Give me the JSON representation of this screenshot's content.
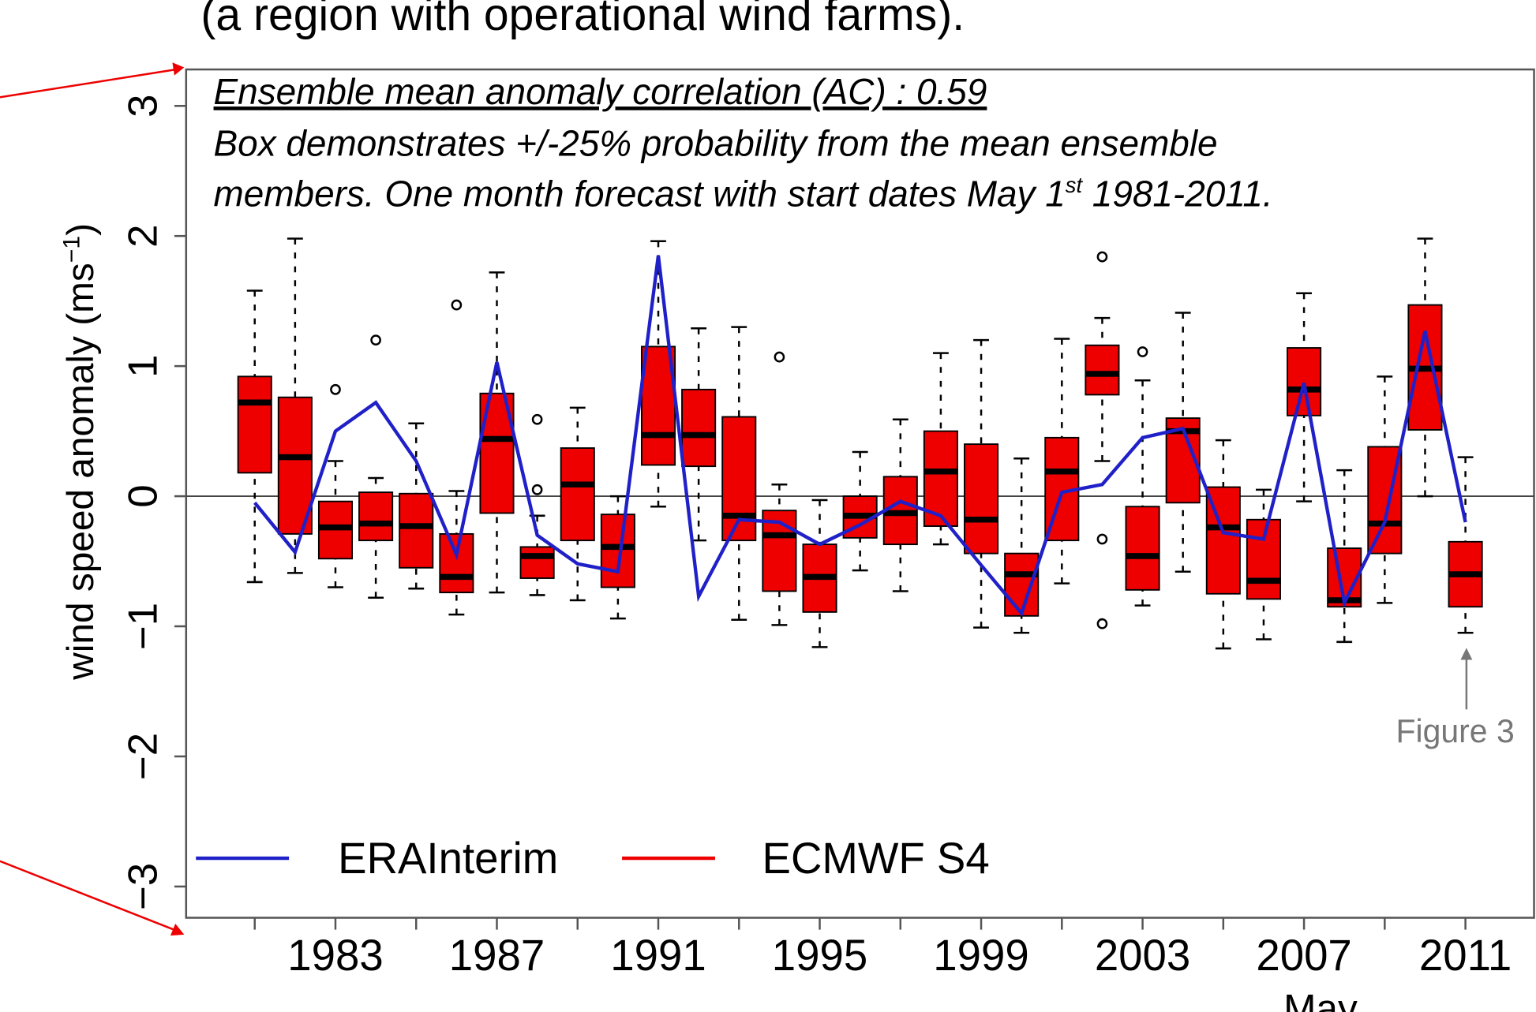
{
  "header_text": "(a region with operational wind farms).",
  "chart_data": {
    "type": "box",
    "annotations": [
      "Ensemble mean anomaly correlation (AC) : 0.59",
      "Box demonstrates +/-25% probability from the mean ensemble",
      "members. One month forecast with start dates May 1",
      "st",
      " 1981-2011.",
      "Figure 3"
    ],
    "xlabel": "May",
    "ylabel": [
      "wind speed anomaly  (ms",
      "−1",
      ")"
    ],
    "x": [
      1981,
      1982,
      1983,
      1984,
      1985,
      1986,
      1987,
      1988,
      1989,
      1990,
      1991,
      1992,
      1993,
      1994,
      1995,
      1996,
      1997,
      1998,
      1999,
      2000,
      2001,
      2002,
      2003,
      2004,
      2005,
      2006,
      2007,
      2008,
      2009,
      2010,
      2011
    ],
    "xlim": [
      1979.3,
      2012.7
    ],
    "xticks": [
      1983,
      1987,
      1991,
      1995,
      1999,
      2003,
      2007,
      2011
    ],
    "x_minor_ticks": [
      1981,
      1985,
      1989,
      1993,
      1997,
      2001,
      2005,
      2009
    ],
    "ylim": [
      -3.24,
      3.28
    ],
    "yticks": [
      {
        "value": -3,
        "label": "−3"
      },
      {
        "value": -2,
        "label": "−2"
      },
      {
        "value": -1,
        "label": "−1"
      },
      0,
      1,
      2,
      3
    ],
    "hline": 0,
    "series": [
      {
        "name": "ERAInterim",
        "color": "#2020c8",
        "values": [
          -0.05,
          -0.43,
          0.5,
          0.72,
          0.27,
          -0.45,
          1.03,
          -0.3,
          -0.52,
          -0.58,
          1.85,
          -0.77,
          -0.18,
          -0.2,
          -0.37,
          -0.22,
          -0.04,
          -0.15,
          -0.53,
          -0.9,
          0.03,
          0.09,
          0.45,
          0.52,
          -0.28,
          -0.33,
          0.87,
          -0.82,
          -0.2,
          1.27,
          -0.2
        ]
      },
      {
        "name": "ECMWF S4",
        "color": "#ee0000",
        "whisker_high": [
          1.58,
          1.98,
          0.27,
          0.14,
          0.56,
          0.04,
          1.72,
          -0.15,
          0.68,
          0.0,
          1.96,
          1.29,
          1.3,
          0.09,
          -0.03,
          0.34,
          0.59,
          1.1,
          1.2,
          0.29,
          1.21,
          1.37,
          0.89,
          1.41,
          0.43,
          0.05,
          1.56,
          0.2,
          0.92,
          1.98,
          0.3
        ],
        "q3": [
          0.92,
          0.76,
          -0.04,
          0.03,
          0.02,
          -0.29,
          0.79,
          -0.39,
          0.37,
          -0.14,
          1.15,
          0.82,
          0.61,
          -0.11,
          -0.37,
          0.0,
          0.15,
          0.5,
          0.4,
          -0.44,
          0.45,
          1.16,
          -0.08,
          0.6,
          0.07,
          -0.18,
          1.14,
          -0.4,
          0.38,
          1.47,
          -0.35
        ],
        "median": [
          0.72,
          0.3,
          -0.24,
          -0.21,
          -0.23,
          -0.62,
          0.44,
          -0.46,
          0.09,
          -0.39,
          0.47,
          0.47,
          -0.15,
          -0.3,
          -0.62,
          -0.15,
          -0.13,
          0.19,
          -0.18,
          -0.6,
          0.19,
          0.94,
          -0.46,
          0.5,
          -0.24,
          -0.65,
          0.82,
          -0.8,
          -0.21,
          0.98,
          -0.6
        ],
        "q1": [
          0.18,
          -0.29,
          -0.48,
          -0.34,
          -0.55,
          -0.74,
          -0.13,
          -0.63,
          -0.34,
          -0.7,
          0.24,
          0.23,
          -0.34,
          -0.73,
          -0.89,
          -0.32,
          -0.37,
          -0.23,
          -0.44,
          -0.92,
          -0.34,
          0.78,
          -0.72,
          -0.05,
          -0.75,
          -0.79,
          0.62,
          -0.85,
          -0.44,
          0.51,
          -0.85
        ],
        "whisker_low": [
          -0.66,
          -0.59,
          -0.7,
          -0.78,
          -0.71,
          -0.91,
          -0.74,
          -0.76,
          -0.8,
          -0.94,
          -0.08,
          -0.34,
          -0.95,
          -0.99,
          -1.16,
          -0.57,
          -0.73,
          -0.37,
          -1.01,
          -1.05,
          -0.67,
          0.27,
          -0.84,
          -0.58,
          -1.17,
          -1.1,
          -0.04,
          -1.12,
          -0.82,
          0.0,
          -1.05
        ],
        "outliers": {
          "x": [
            1983,
            1984,
            1986,
            1988,
            1988,
            1994,
            2002,
            2002,
            2002,
            2003
          ],
          "y": [
            0.82,
            1.2,
            1.47,
            0.59,
            0.05,
            1.07,
            1.84,
            -0.33,
            -0.98,
            1.11
          ]
        }
      }
    ]
  }
}
